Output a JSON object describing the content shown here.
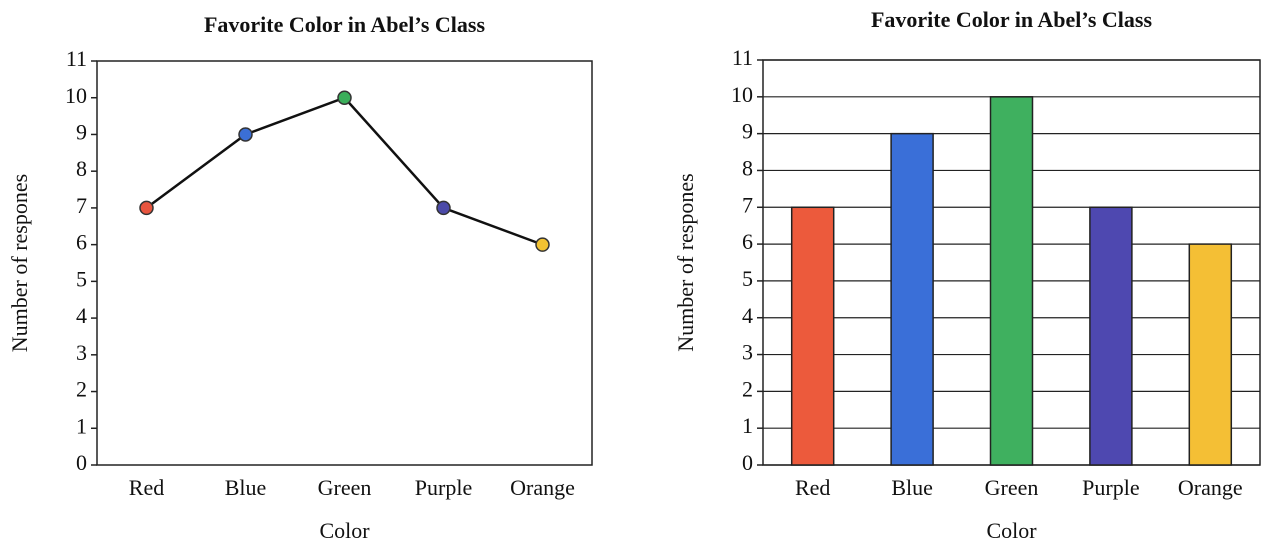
{
  "chart_data": [
    {
      "type": "line",
      "title": "Favorite Color in Abel’s Class",
      "x_label": "Color",
      "y_label": "Number of respones",
      "categories": [
        "Red",
        "Blue",
        "Green",
        "Purple",
        "Orange"
      ],
      "values": [
        7,
        9,
        10,
        7,
        6
      ],
      "line_color": "#111111",
      "colors": [
        "#e8553f",
        "#3b6fd6",
        "#3aae5a",
        "#4b4aa8",
        "#f2c232"
      ],
      "ylim": [
        0,
        11
      ],
      "yticks": [
        0,
        1,
        2,
        3,
        4,
        5,
        6,
        7,
        8,
        9,
        10,
        11
      ],
      "grid": false
    },
    {
      "type": "bar",
      "title": "Favorite Color in Abel’s Class",
      "x_label": "Color",
      "y_label": "Number of respones",
      "categories": [
        "Red",
        "Blue",
        "Green",
        "Purple",
        "Orange"
      ],
      "values": [
        7,
        9,
        10,
        7,
        6
      ],
      "colors": [
        "#ec5a3c",
        "#3a6fd8",
        "#3fb05f",
        "#4e48b0",
        "#f4bf35"
      ],
      "ylim": [
        0,
        11
      ],
      "yticks": [
        0,
        1,
        2,
        3,
        4,
        5,
        6,
        7,
        8,
        9,
        10,
        11
      ],
      "grid": true
    }
  ]
}
